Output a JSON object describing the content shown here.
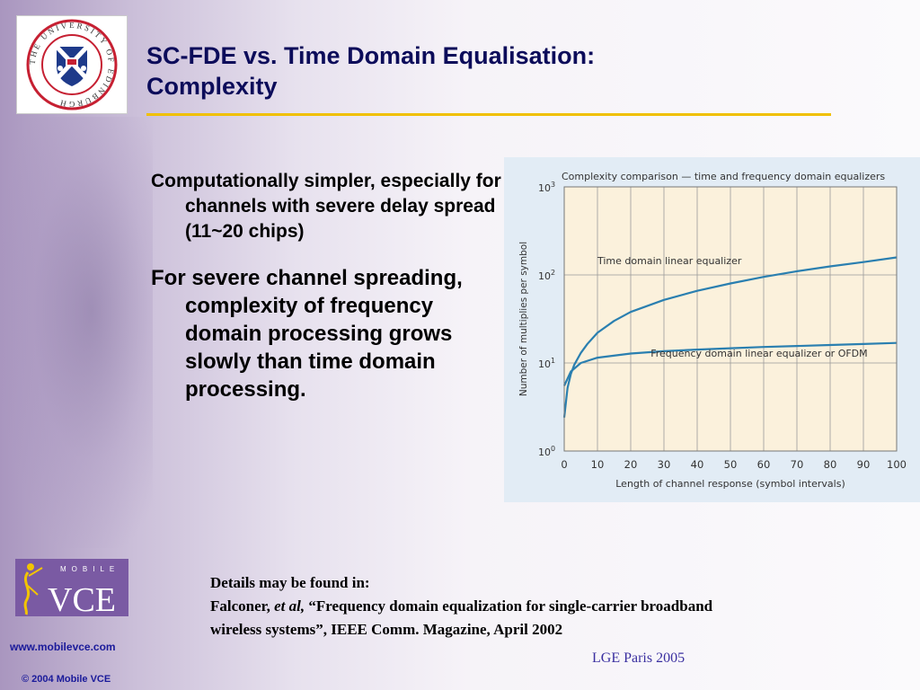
{
  "slide": {
    "title_line1": "SC-FDE vs. Time Domain Equalisation:",
    "title_line2": "Complexity",
    "bullets": [
      "Computationally simpler, especially for channels with severe delay spread (11~20 chips)",
      "For severe channel spreading, complexity of frequency domain processing  grows slowly than time domain processing."
    ],
    "details": {
      "line1": "Details may be found in:",
      "author": "Falconer, ",
      "etal": "et al,",
      "ref_rest": " “Frequency domain equalization for single-carrier broadband",
      "line3": "wireless systems”, IEEE Comm. Magazine, April 2002"
    },
    "footer_tag": "LGE Paris 2005",
    "website": "www.mobilevce.com",
    "copyright": "© 2004 Mobile VCE",
    "logos": {
      "university_text": "THE UNIVERSITY OF EDINBURGH",
      "mvce_small": "MOBILE",
      "mvce_big": "VCE"
    }
  },
  "colors": {
    "title": "#0c0c5a",
    "rule": "#f0c000",
    "curve": "#2a7fb0",
    "chart_bg": "#fbf1dc",
    "link": "#1a1a9a",
    "footer": "#3a2fa0"
  },
  "chart_data": {
    "type": "line",
    "title": "Complexity comparison — time and frequency domain equalizers",
    "xlabel": "Length of channel response (symbol intervals)",
    "ylabel": "Number of multiplies per symbol",
    "xlim": [
      0,
      100
    ],
    "ylim": [
      1,
      1000
    ],
    "yscale": "log",
    "x_ticks": [
      0,
      10,
      20,
      30,
      40,
      50,
      60,
      70,
      80,
      90,
      100
    ],
    "y_ticks": [
      {
        "value": 1,
        "base": "10",
        "exp": "0"
      },
      {
        "value": 10,
        "base": "10",
        "exp": "1"
      },
      {
        "value": 100,
        "base": "10",
        "exp": "2"
      },
      {
        "value": 1000,
        "base": "10",
        "exp": "3"
      }
    ],
    "grid": true,
    "series": [
      {
        "name": "Time domain linear equalizer",
        "x": [
          0,
          1,
          2,
          3,
          5,
          7,
          10,
          15,
          20,
          30,
          40,
          50,
          60,
          70,
          80,
          90,
          100
        ],
        "y": [
          2.4,
          5.2,
          7.5,
          9.5,
          13,
          16.5,
          22,
          30,
          38,
          52,
          66,
          80,
          95,
          110,
          125,
          140,
          158
        ]
      },
      {
        "name": "Frequency domain linear equalizer or OFDM",
        "x": [
          0,
          2,
          5,
          10,
          20,
          30,
          40,
          50,
          60,
          70,
          80,
          90,
          100
        ],
        "y": [
          5.5,
          8,
          10,
          11.5,
          12.8,
          13.6,
          14.2,
          14.7,
          15.2,
          15.6,
          16.0,
          16.4,
          16.9
        ]
      }
    ]
  }
}
